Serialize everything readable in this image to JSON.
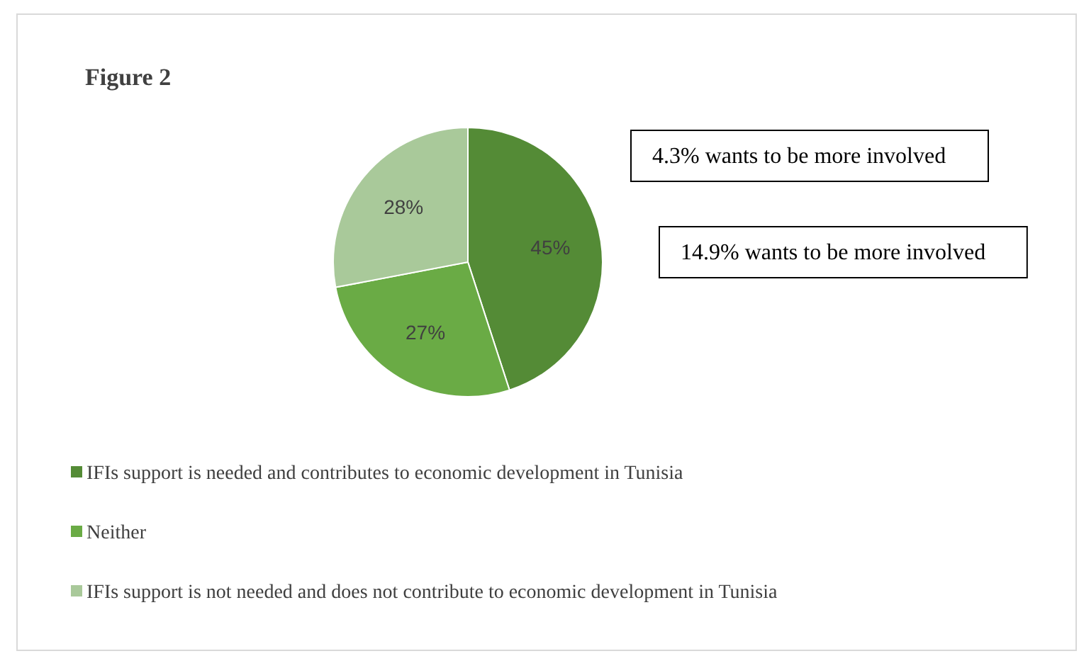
{
  "chart_data": {
    "type": "pie",
    "title": "Figure 2",
    "categories": [
      "IFIs support is needed and contributes to economic development in Tunisia",
      "Neither",
      "IFIs support is not needed and does not contribute to economic development in Tunisia"
    ],
    "values": [
      45,
      27,
      28
    ],
    "colors": [
      "#548b36",
      "#6aab45",
      "#a9c99a"
    ],
    "value_labels": [
      "45%",
      "27%",
      "28%"
    ],
    "annotations": [
      "4.3% wants to be more involved",
      "14.9% wants to be more involved"
    ],
    "legend": "bottom"
  }
}
